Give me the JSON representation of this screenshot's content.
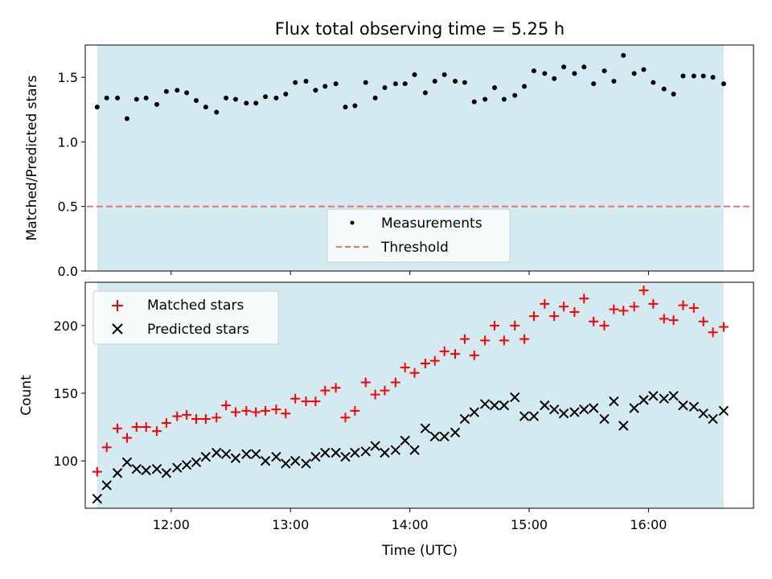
{
  "title": "Flux total observing time = 5.25 h",
  "colors": {
    "observing_span": "#d3eaf0",
    "measurements": "#000000",
    "threshold": "#f07070",
    "matched": "#ff0000",
    "predicted": "#000000"
  },
  "chart_data": [
    {
      "type": "scatter",
      "ylabel": "Matched/Predicted stars",
      "xlim": [
        11.28,
        16.88
      ],
      "ylim": [
        0.0,
        1.75
      ],
      "yticks": [
        0.0,
        0.5,
        1.0,
        1.5
      ],
      "ytick_labels": [
        "0.0",
        "0.5",
        "1.0",
        "1.5"
      ],
      "shaded_span": [
        11.38,
        16.63
      ],
      "threshold": 0.5,
      "legend": {
        "placement": "lower-center",
        "entries": [
          "Measurements",
          "Threshold"
        ]
      },
      "series": [
        {
          "name": "Measurements",
          "marker": "dot",
          "x": [
            11.38,
            11.46,
            11.55,
            11.63,
            11.71,
            11.79,
            11.88,
            11.96,
            12.05,
            12.13,
            12.21,
            12.29,
            12.38,
            12.46,
            12.54,
            12.63,
            12.71,
            12.79,
            12.88,
            12.96,
            13.04,
            13.13,
            13.21,
            13.29,
            13.38,
            13.46,
            13.54,
            13.63,
            13.71,
            13.79,
            13.88,
            13.96,
            14.04,
            14.13,
            14.21,
            14.29,
            14.38,
            14.46,
            14.54,
            14.63,
            14.71,
            14.79,
            14.88,
            14.96,
            15.04,
            15.13,
            15.21,
            15.29,
            15.38,
            15.46,
            15.54,
            15.63,
            15.71,
            15.79,
            15.88,
            15.96,
            16.04,
            16.13,
            16.21,
            16.29,
            16.38,
            16.46,
            16.54,
            16.63
          ],
          "y": [
            1.27,
            1.34,
            1.34,
            1.18,
            1.33,
            1.34,
            1.29,
            1.39,
            1.4,
            1.38,
            1.32,
            1.27,
            1.23,
            1.34,
            1.33,
            1.3,
            1.3,
            1.35,
            1.34,
            1.37,
            1.46,
            1.47,
            1.4,
            1.43,
            1.45,
            1.27,
            1.28,
            1.46,
            1.34,
            1.42,
            1.45,
            1.45,
            1.52,
            1.38,
            1.47,
            1.52,
            1.47,
            1.46,
            1.31,
            1.33,
            1.42,
            1.33,
            1.36,
            1.43,
            1.55,
            1.53,
            1.49,
            1.58,
            1.53,
            1.58,
            1.45,
            1.55,
            1.47,
            1.67,
            1.53,
            1.56,
            1.46,
            1.41,
            1.37,
            1.51,
            1.51,
            1.51,
            1.5,
            1.45
          ]
        }
      ]
    },
    {
      "type": "scatter",
      "xlabel": "Time (UTC)",
      "ylabel": "Count",
      "xlim": [
        11.28,
        16.88
      ],
      "ylim": [
        65,
        232
      ],
      "xticks": [
        12,
        13,
        14,
        15,
        16
      ],
      "xtick_labels": [
        "12:00",
        "13:00",
        "14:00",
        "15:00",
        "16:00"
      ],
      "yticks": [
        100,
        150,
        200
      ],
      "ytick_labels": [
        "100",
        "150",
        "200"
      ],
      "shaded_span": [
        11.38,
        16.63
      ],
      "legend": {
        "placement": "upper-left",
        "entries": [
          "Matched stars",
          "Predicted stars"
        ]
      },
      "series": [
        {
          "name": "Matched stars",
          "marker": "plus",
          "x": [
            11.38,
            11.46,
            11.55,
            11.63,
            11.71,
            11.79,
            11.88,
            11.96,
            12.05,
            12.13,
            12.21,
            12.29,
            12.38,
            12.46,
            12.54,
            12.63,
            12.71,
            12.79,
            12.88,
            12.96,
            13.04,
            13.13,
            13.21,
            13.29,
            13.38,
            13.46,
            13.54,
            13.63,
            13.71,
            13.79,
            13.88,
            13.96,
            14.04,
            14.13,
            14.21,
            14.29,
            14.38,
            14.46,
            14.54,
            14.63,
            14.71,
            14.79,
            14.88,
            14.96,
            15.04,
            15.13,
            15.21,
            15.29,
            15.38,
            15.46,
            15.54,
            15.63,
            15.71,
            15.79,
            15.88,
            15.96,
            16.04,
            16.13,
            16.21,
            16.29,
            16.38,
            16.46,
            16.54,
            16.63
          ],
          "y": [
            92,
            110,
            124,
            117,
            125,
            125,
            122,
            128,
            133,
            134,
            131,
            131,
            132,
            141,
            136,
            137,
            136,
            137,
            138,
            135,
            146,
            144,
            144,
            152,
            154,
            132,
            137,
            158,
            149,
            152,
            158,
            169,
            165,
            172,
            174,
            181,
            179,
            190,
            178,
            189,
            200,
            189,
            200,
            190,
            207,
            216,
            207,
            214,
            210,
            220,
            203,
            200,
            212,
            211,
            214,
            226,
            216,
            205,
            204,
            215,
            213,
            203,
            195,
            199
          ]
        },
        {
          "name": "Predicted stars",
          "marker": "x",
          "x": [
            11.38,
            11.46,
            11.55,
            11.63,
            11.71,
            11.79,
            11.88,
            11.96,
            12.05,
            12.13,
            12.21,
            12.29,
            12.38,
            12.46,
            12.54,
            12.63,
            12.71,
            12.79,
            12.88,
            12.96,
            13.04,
            13.13,
            13.21,
            13.29,
            13.38,
            13.46,
            13.54,
            13.63,
            13.71,
            13.79,
            13.88,
            13.96,
            14.04,
            14.13,
            14.21,
            14.29,
            14.38,
            14.46,
            14.54,
            14.63,
            14.71,
            14.79,
            14.88,
            14.96,
            15.04,
            15.13,
            15.21,
            15.29,
            15.38,
            15.46,
            15.54,
            15.63,
            15.71,
            15.79,
            15.88,
            15.96,
            16.04,
            16.13,
            16.21,
            16.29,
            16.38,
            16.46,
            16.54,
            16.63
          ],
          "y": [
            72,
            82,
            91,
            99,
            94,
            93,
            94,
            91,
            95,
            97,
            99,
            103,
            106,
            105,
            102,
            105,
            105,
            100,
            103,
            98,
            100,
            98,
            103,
            106,
            106,
            103,
            106,
            107,
            111,
            106,
            108,
            115,
            108,
            124,
            118,
            118,
            121,
            131,
            136,
            142,
            141,
            141,
            147,
            133,
            133,
            141,
            138,
            135,
            136,
            138,
            139,
            131,
            144,
            126,
            139,
            145,
            148,
            146,
            148,
            141,
            140,
            135,
            131,
            137
          ]
        }
      ]
    }
  ]
}
